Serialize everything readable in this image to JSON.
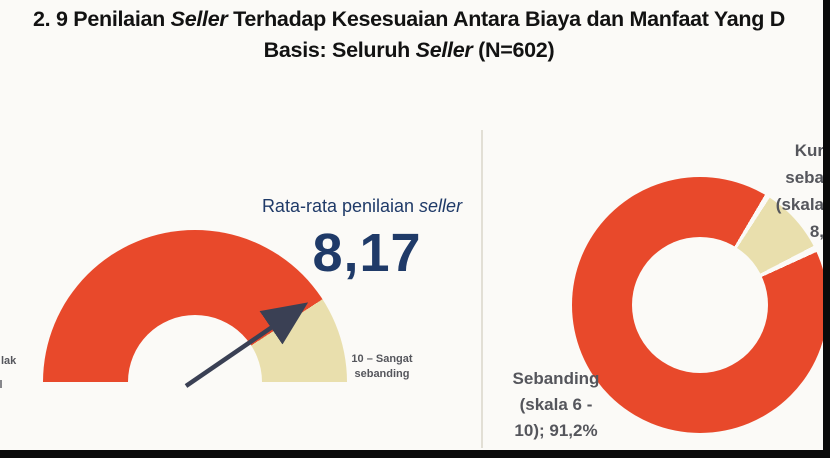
{
  "colors": {
    "red": "#E8492B",
    "cream": "#E9DFAD",
    "navy": "#1F3A68",
    "gray": "#55565C",
    "ink": "#121212",
    "bg": "#FBFAF7",
    "divider": "#E2DFD5",
    "needle": "#3A4054",
    "bar": "#0A0A0A"
  },
  "title": {
    "line1_segments": [
      {
        "text": "2. 9 Penilaian ",
        "italic": false
      },
      {
        "text": "Seller",
        "italic": true
      },
      {
        "text": " Terhadap Kesesuaian Antara Biaya dan Manfaat Yang D",
        "italic": false
      }
    ],
    "line2_segments": [
      {
        "text": "Basis: Seluruh ",
        "italic": false
      },
      {
        "text": "Seller",
        "italic": true
      },
      {
        "text": " (N=602)",
        "italic": false
      }
    ]
  },
  "gauge": {
    "heading_segments": [
      {
        "text": "Rata-rata penilaian ",
        "italic": false
      },
      {
        "text": "seller",
        "italic": true
      }
    ],
    "value": "8,17",
    "min_label_visible_fragment": "lak",
    "max_label_lines": [
      "10 – Sangat",
      "sebanding"
    ]
  },
  "donut": {
    "big_slice_label_lines": [
      "Sebanding",
      "(skala 6 -",
      "10); 91,2%"
    ],
    "small_slice_label_visible_fragments": [
      "Kur",
      "seba",
      "(skala",
      "8,"
    ]
  },
  "chart_data": [
    {
      "type": "gauge",
      "title": "Rata-rata penilaian seller",
      "value": 8.17,
      "value_label": "8,17",
      "scale_min": 0,
      "scale_max": 10,
      "segments": [
        {
          "name": "rating (0 sampai 8,17)",
          "value": 8.17,
          "color": "#E8492B"
        },
        {
          "name": "sisa (8,17 sampai 10)",
          "value": 1.83,
          "color": "#E9DFAD"
        }
      ],
      "axis_labels": {
        "left_visible_fragment": "lak",
        "right": "10 – Sangat sebanding"
      },
      "needle": true
    },
    {
      "type": "pie",
      "donut": true,
      "slices": [
        {
          "label": "Sebanding (skala 6 - 10)",
          "value_pct": 91.2,
          "color": "#E8492B"
        },
        {
          "label_visible_fragments": [
            "Kur",
            "seba",
            "(skala",
            "8,"
          ],
          "value_pct": 8.8,
          "color": "#E9DFAD"
        }
      ],
      "legend_position": "outside-callout-labels",
      "start_gap_deg": 33
    }
  ]
}
